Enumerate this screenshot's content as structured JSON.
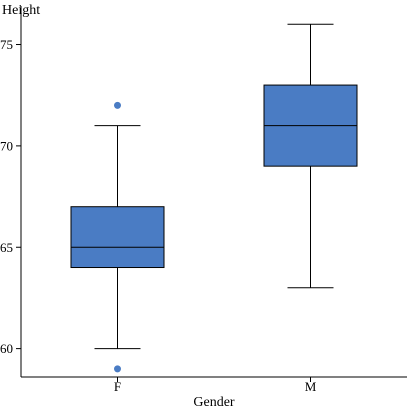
{
  "chart_data": {
    "type": "box",
    "xlabel": "Gender",
    "ylabel": "Height",
    "categories": [
      "F",
      "M"
    ],
    "ylim": [
      58.6,
      76.9
    ],
    "yticks": [
      60,
      65,
      70,
      75
    ],
    "box_color": "#4a7cc4",
    "outlier_color": "#4a7cc4",
    "grid": false,
    "boxes": [
      {
        "category": "F",
        "whisker_low": 60,
        "q1": 64,
        "median": 65,
        "q3": 67,
        "whisker_high": 71,
        "outliers": [
          72,
          59
        ]
      },
      {
        "category": "M",
        "whisker_low": 63,
        "q1": 69,
        "median": 71,
        "q3": 73,
        "whisker_high": 76,
        "outliers": []
      }
    ]
  }
}
